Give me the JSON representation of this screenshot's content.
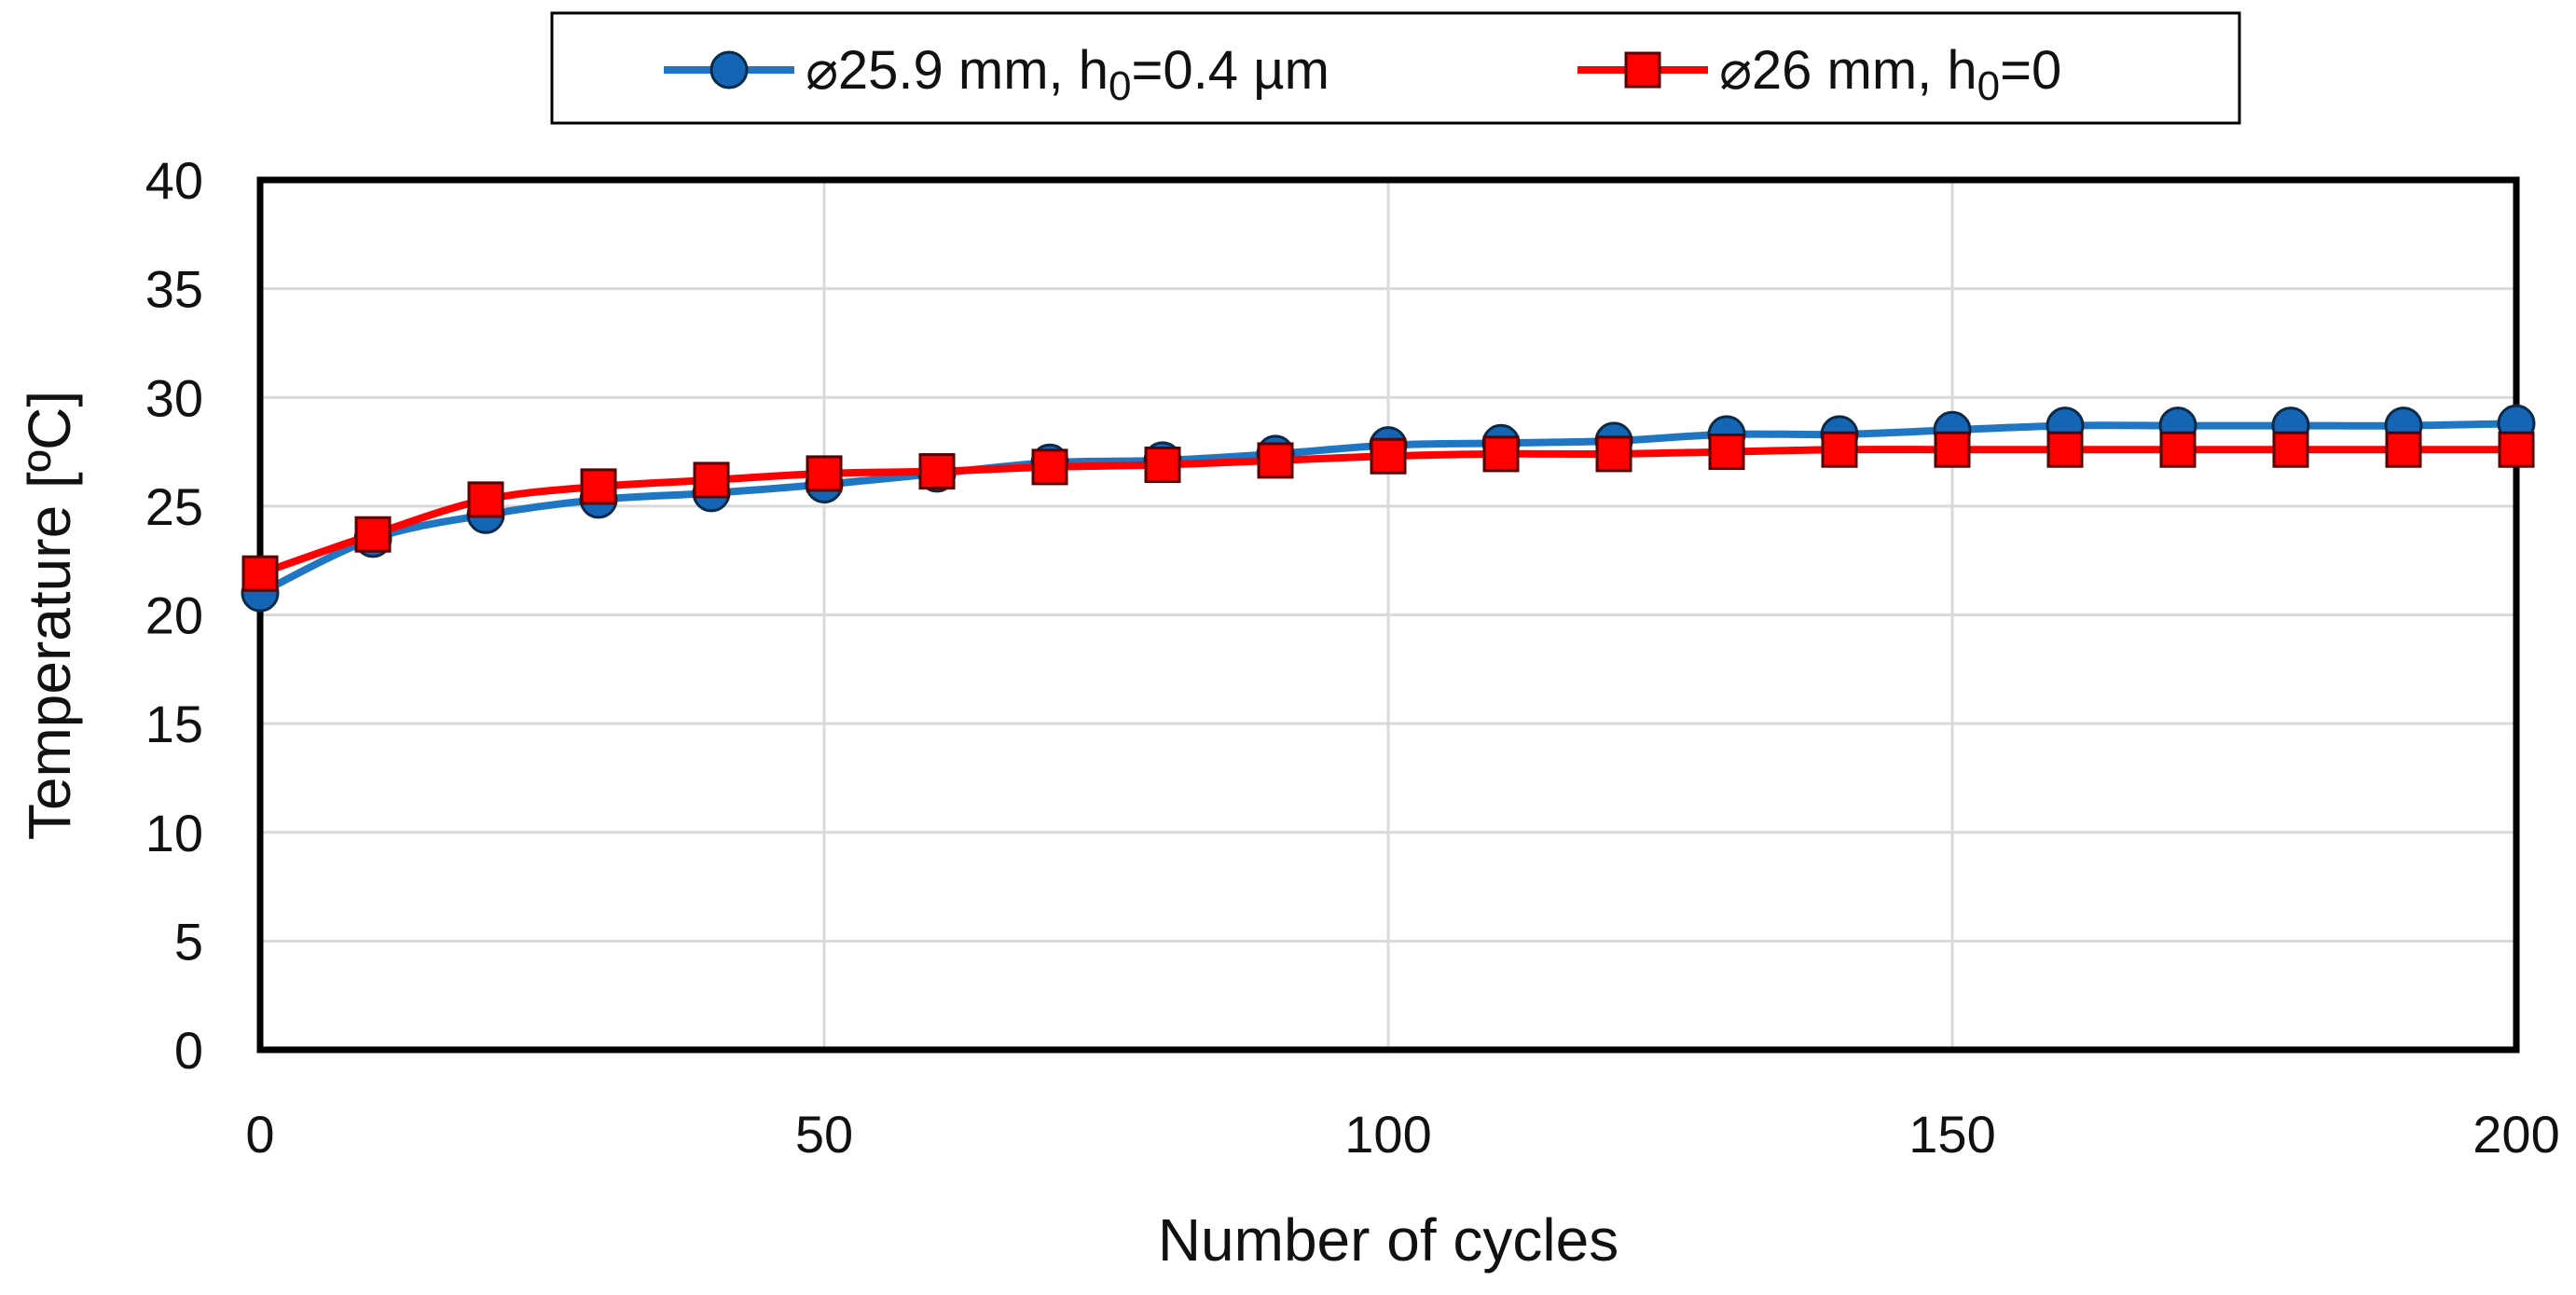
{
  "chart_data": {
    "type": "line",
    "title": "",
    "xlabel": "Number of cycles",
    "ylabel": "Temperature [ºC]",
    "xlim": [
      0,
      200
    ],
    "ylim": [
      0,
      40
    ],
    "x_ticks": [
      0,
      50,
      100,
      150,
      200
    ],
    "y_ticks": [
      0,
      5,
      10,
      15,
      20,
      25,
      30,
      35,
      40
    ],
    "grid": true,
    "legend_position": "top-center",
    "x": [
      0,
      10,
      20,
      30,
      40,
      50,
      60,
      70,
      80,
      90,
      100,
      110,
      120,
      130,
      140,
      150,
      160,
      170,
      180,
      190,
      200
    ],
    "series": [
      {
        "name": "⌀25.9 mm, h0=0.4 µm",
        "legend_prefix": "⌀25.9 mm, h",
        "legend_sub": "0",
        "legend_suffix": "=0.4 µm",
        "color": "#1f77c4",
        "marker_fill": "#1565b5",
        "marker": "circle",
        "values": [
          21.0,
          23.5,
          24.6,
          25.3,
          25.6,
          26.0,
          26.5,
          27.0,
          27.1,
          27.4,
          27.8,
          27.9,
          28.0,
          28.3,
          28.3,
          28.5,
          28.7,
          28.7,
          28.7,
          28.7,
          28.8
        ]
      },
      {
        "name": "⌀26 mm, h0=0",
        "legend_prefix": "⌀26 mm, h",
        "legend_sub": "0",
        "legend_suffix": "=0",
        "color": "#ff0000",
        "marker_fill": "#ff0000",
        "marker": "square",
        "values": [
          21.9,
          23.7,
          25.3,
          25.9,
          26.2,
          26.5,
          26.6,
          26.8,
          26.9,
          27.1,
          27.3,
          27.4,
          27.4,
          27.5,
          27.6,
          27.6,
          27.6,
          27.6,
          27.6,
          27.6,
          27.6
        ]
      }
    ]
  }
}
